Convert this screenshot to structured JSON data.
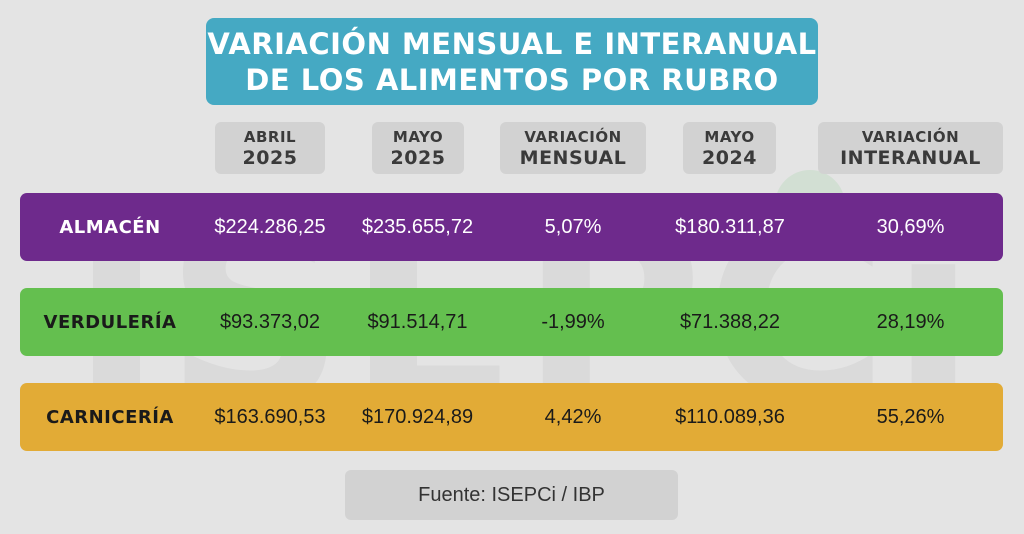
{
  "title": {
    "line1": "VARIACIÓN MENSUAL E INTERANUAL",
    "line2": "DE LOS ALIMENTOS POR RUBRO"
  },
  "watermark_text": "ISEPCi",
  "columns": [
    {
      "top": "ABRIL",
      "bottom": "2025"
    },
    {
      "top": "MAYO",
      "bottom": "2025"
    },
    {
      "top": "VARIACIÓN",
      "bottom": "MENSUAL"
    },
    {
      "top": "MAYO",
      "bottom": "2024"
    },
    {
      "top": "VARIACIÓN",
      "bottom": "INTERANUAL"
    }
  ],
  "rows": [
    {
      "label": "ALMACÉN",
      "color": "#6e2a8c",
      "text_color": "#ffffff",
      "cells": [
        "$224.286,25",
        "$235.655,72",
        "5,07%",
        "$180.311,87",
        "30,69%"
      ]
    },
    {
      "label": "VERDULERÍA",
      "color": "#64bf4f",
      "text_color": "#1a1a1a",
      "cells": [
        "$93.373,02",
        "$91.514,71",
        "-1,99%",
        "$71.388,22",
        "28,19%"
      ]
    },
    {
      "label": "CARNICERÍA",
      "color": "#e2ab36",
      "text_color": "#1a1a1a",
      "cells": [
        "$163.690,53",
        "$170.924,89",
        "4,42%",
        "$110.089,36",
        "55,26%"
      ]
    }
  ],
  "source": "Fuente: ISEPCi / IBP",
  "chart_data": {
    "type": "table",
    "title": "VARIACIÓN MENSUAL E INTERANUAL DE LOS ALIMENTOS POR RUBRO",
    "columns": [
      "ABRIL 2025",
      "MAYO 2025",
      "VARIACIÓN MENSUAL",
      "MAYO 2024",
      "VARIACIÓN INTERANUAL"
    ],
    "rows": [
      {
        "rubro": "ALMACÉN",
        "values": [
          "$224.286,25",
          "$235.655,72",
          "5,07%",
          "$180.311,87",
          "30,69%"
        ]
      },
      {
        "rubro": "VERDULERÍA",
        "values": [
          "$93.373,02",
          "$91.514,71",
          "-1,99%",
          "$71.388,22",
          "28,19%"
        ]
      },
      {
        "rubro": "CARNICERÍA",
        "values": [
          "$163.690,53",
          "$170.924,89",
          "4,42%",
          "$110.089,36",
          "55,26%"
        ]
      }
    ],
    "source": "Fuente: ISEPCi / IBP"
  }
}
